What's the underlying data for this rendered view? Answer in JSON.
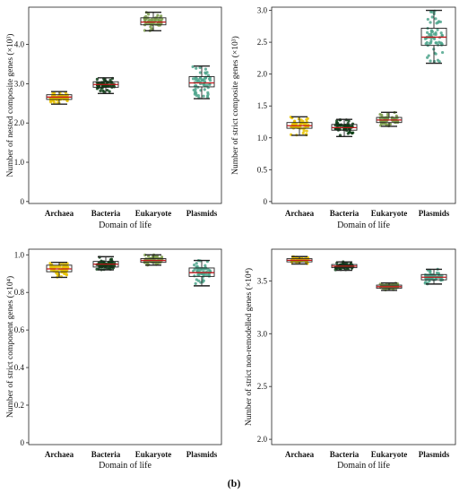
{
  "figure_label": "(b)",
  "chart_data": [
    {
      "type": "box",
      "ylabel": "Number of nested composite genes (×10³)",
      "xlabel": "Domain of life",
      "categories": [
        "Archaea",
        "Bacteria",
        "Eukaryote",
        "Plasmids"
      ],
      "ylim": [
        -0.05,
        4.95
      ],
      "yticks": [
        "0",
        "1.0",
        "2.0",
        "3.0",
        "4.0"
      ],
      "ytick_values": [
        0,
        1,
        2,
        3,
        4
      ],
      "grid": false,
      "boxes": [
        {
          "name": "Archaea",
          "min": 2.48,
          "q1": 2.6,
          "median": 2.66,
          "q3": 2.72,
          "max": 2.8,
          "color": "#e6c200"
        },
        {
          "name": "Bacteria",
          "min": 2.75,
          "q1": 2.91,
          "median": 2.98,
          "q3": 3.05,
          "max": 3.15,
          "color": "#0b3d14"
        },
        {
          "name": "Eukaryote",
          "min": 4.35,
          "q1": 4.5,
          "median": 4.57,
          "q3": 4.68,
          "max": 4.82,
          "color": "#7a9a4a"
        },
        {
          "name": "Plasmids",
          "min": 2.62,
          "q1": 2.92,
          "median": 3.02,
          "q3": 3.18,
          "max": 3.45,
          "color": "#4ea58c"
        }
      ]
    },
    {
      "type": "box",
      "ylabel": "Number of strict composite genes (×10³)",
      "xlabel": "Domain of life",
      "categories": [
        "Archaea",
        "Bacteria",
        "Eukaryote",
        "Plasmids"
      ],
      "ylim": [
        -0.03,
        3.05
      ],
      "yticks": [
        "0",
        "0.5",
        "1.0",
        "1.5",
        "2.0",
        "2.5",
        "3.0"
      ],
      "ytick_values": [
        0,
        0.5,
        1.0,
        1.5,
        2.0,
        2.5,
        3.0
      ],
      "grid": false,
      "boxes": [
        {
          "name": "Archaea",
          "min": 1.04,
          "q1": 1.15,
          "median": 1.19,
          "q3": 1.24,
          "max": 1.33,
          "color": "#e6c200"
        },
        {
          "name": "Bacteria",
          "min": 1.02,
          "q1": 1.12,
          "median": 1.16,
          "q3": 1.21,
          "max": 1.29,
          "color": "#0b3d14"
        },
        {
          "name": "Eukaryote",
          "min": 1.18,
          "q1": 1.24,
          "median": 1.28,
          "q3": 1.32,
          "max": 1.4,
          "color": "#7a9a4a"
        },
        {
          "name": "Plasmids",
          "min": 2.17,
          "q1": 2.45,
          "median": 2.58,
          "q3": 2.72,
          "max": 3.0,
          "color": "#4ea58c"
        }
      ]
    },
    {
      "type": "box",
      "ylabel": "Number of strict component genes (×10⁴)",
      "xlabel": "Domain of life",
      "categories": [
        "Archaea",
        "Bacteria",
        "Eukaryote",
        "Plasmids"
      ],
      "ylim": [
        -0.01,
        1.03
      ],
      "yticks": [
        "0",
        "0.2",
        "0.4",
        "0.6",
        "0.8",
        "1.0"
      ],
      "ytick_values": [
        0,
        0.2,
        0.4,
        0.6,
        0.8,
        1.0
      ],
      "grid": false,
      "boxes": [
        {
          "name": "Archaea",
          "min": 0.88,
          "q1": 0.91,
          "median": 0.925,
          "q3": 0.945,
          "max": 0.96,
          "color": "#e6c200"
        },
        {
          "name": "Bacteria",
          "min": 0.92,
          "q1": 0.935,
          "median": 0.95,
          "q3": 0.965,
          "max": 0.99,
          "color": "#0b3d14"
        },
        {
          "name": "Eukaryote",
          "min": 0.945,
          "q1": 0.96,
          "median": 0.97,
          "q3": 0.98,
          "max": 1.0,
          "color": "#7a9a4a"
        },
        {
          "name": "Plasmids",
          "min": 0.835,
          "q1": 0.885,
          "median": 0.905,
          "q3": 0.93,
          "max": 0.97,
          "color": "#4ea58c"
        }
      ]
    },
    {
      "type": "box",
      "ylabel": "Number of strict non-remodelled genes (×10⁴)",
      "xlabel": "Domain of life",
      "categories": [
        "Archaea",
        "Bacteria",
        "Eukaryote",
        "Plasmids"
      ],
      "ylim": [
        1.95,
        3.8
      ],
      "yticks": [
        "2.0",
        "2.5",
        "3.0",
        "3.5"
      ],
      "ytick_values": [
        2.0,
        2.5,
        3.0,
        3.5
      ],
      "grid": false,
      "boxes": [
        {
          "name": "Archaea",
          "min": 3.66,
          "q1": 3.68,
          "median": 3.695,
          "q3": 3.71,
          "max": 3.73,
          "color": "#e6c200"
        },
        {
          "name": "Bacteria",
          "min": 3.6,
          "q1": 3.625,
          "median": 3.64,
          "q3": 3.655,
          "max": 3.68,
          "color": "#0b3d14"
        },
        {
          "name": "Eukaryote",
          "min": 3.41,
          "q1": 3.43,
          "median": 3.445,
          "q3": 3.46,
          "max": 3.48,
          "color": "#7a9a4a"
        },
        {
          "name": "Plasmids",
          "min": 3.47,
          "q1": 3.51,
          "median": 3.535,
          "q3": 3.56,
          "max": 3.61,
          "color": "#4ea58c"
        }
      ]
    }
  ]
}
